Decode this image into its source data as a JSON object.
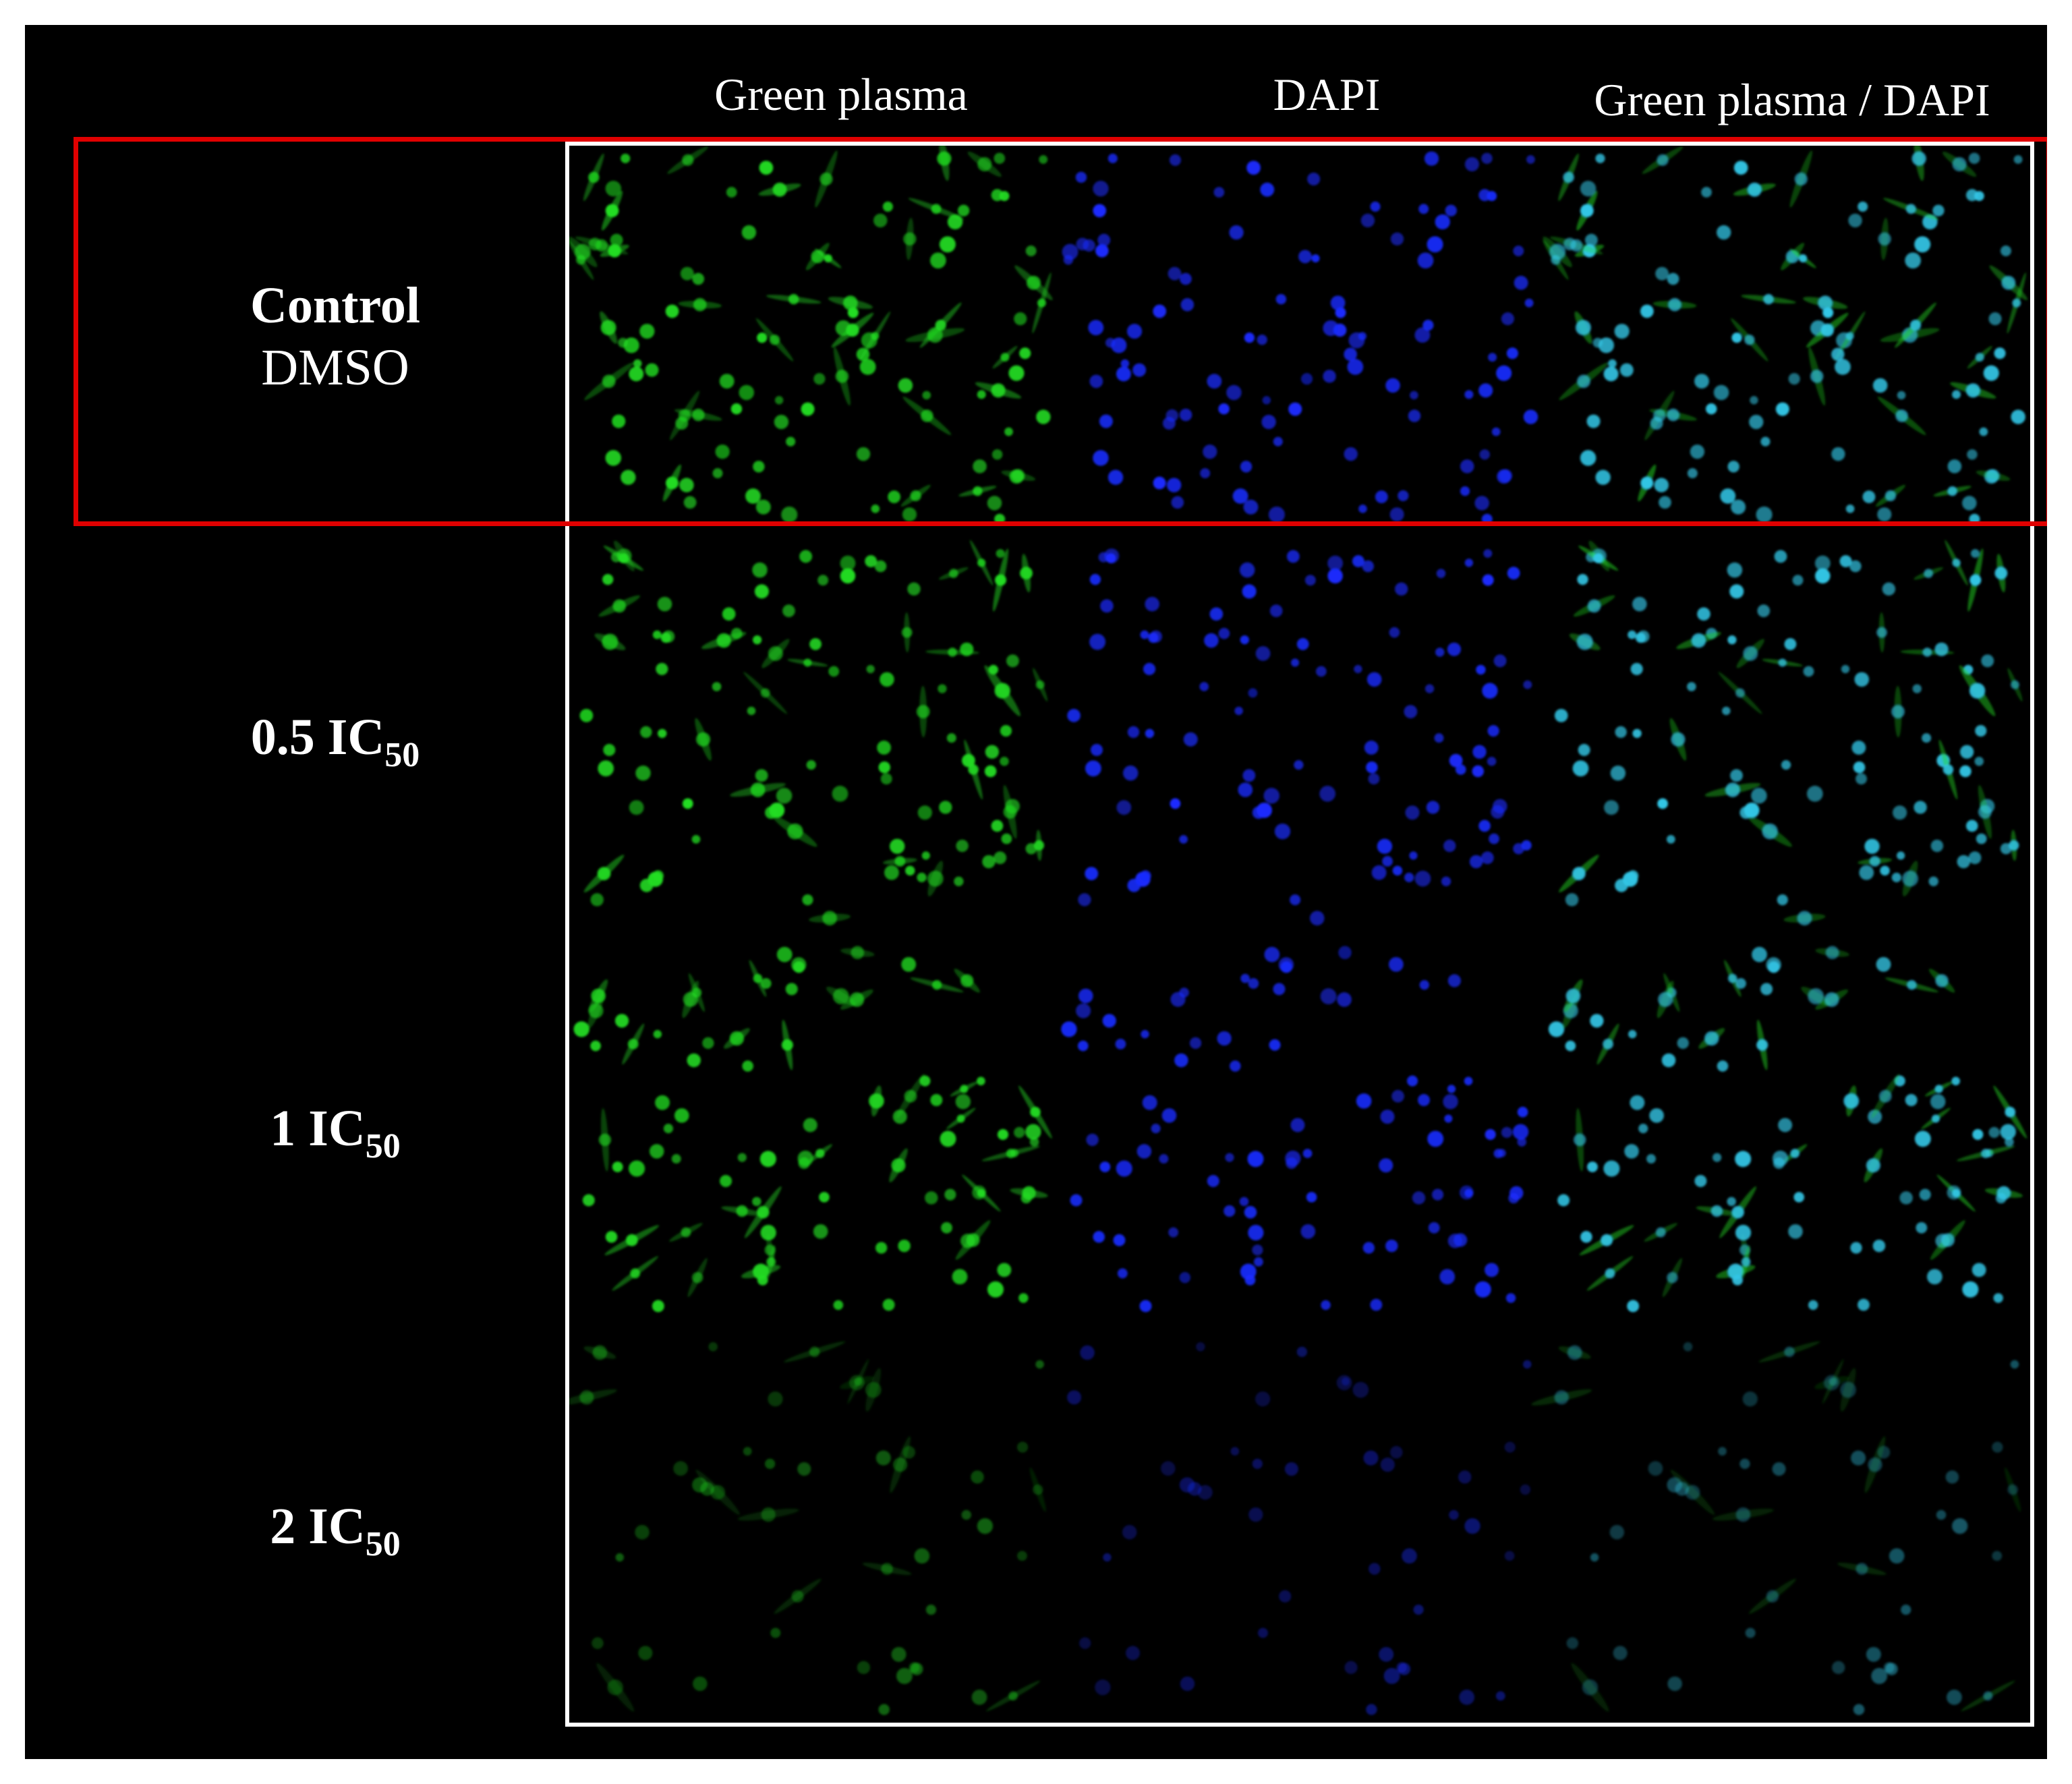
{
  "figure": {
    "column_headers": [
      "Green plasma",
      "DAPI",
      "Green plasma / DAPI"
    ],
    "rows": [
      {
        "title": "Control",
        "subtitle": "DMSO",
        "intensity": 1.0,
        "seed": 11
      },
      {
        "title": "0.5 IC",
        "subscript": "50",
        "intensity": 0.95,
        "seed": 23
      },
      {
        "title": "1 IC",
        "subscript": "50",
        "intensity": 0.85,
        "seed": 37
      },
      {
        "title": "2 IC",
        "subscript": "50",
        "intensity": 0.35,
        "seed": 51
      }
    ],
    "channels": [
      {
        "name": "Green plasma",
        "color": "#22dd22"
      },
      {
        "name": "DAPI",
        "color": "#1a2cff"
      },
      {
        "name": "Green plasma / DAPI",
        "color": "#33c6e6"
      }
    ],
    "highlight_color": "#e00000",
    "frame_color": "#ffffff",
    "background": "#000000"
  }
}
